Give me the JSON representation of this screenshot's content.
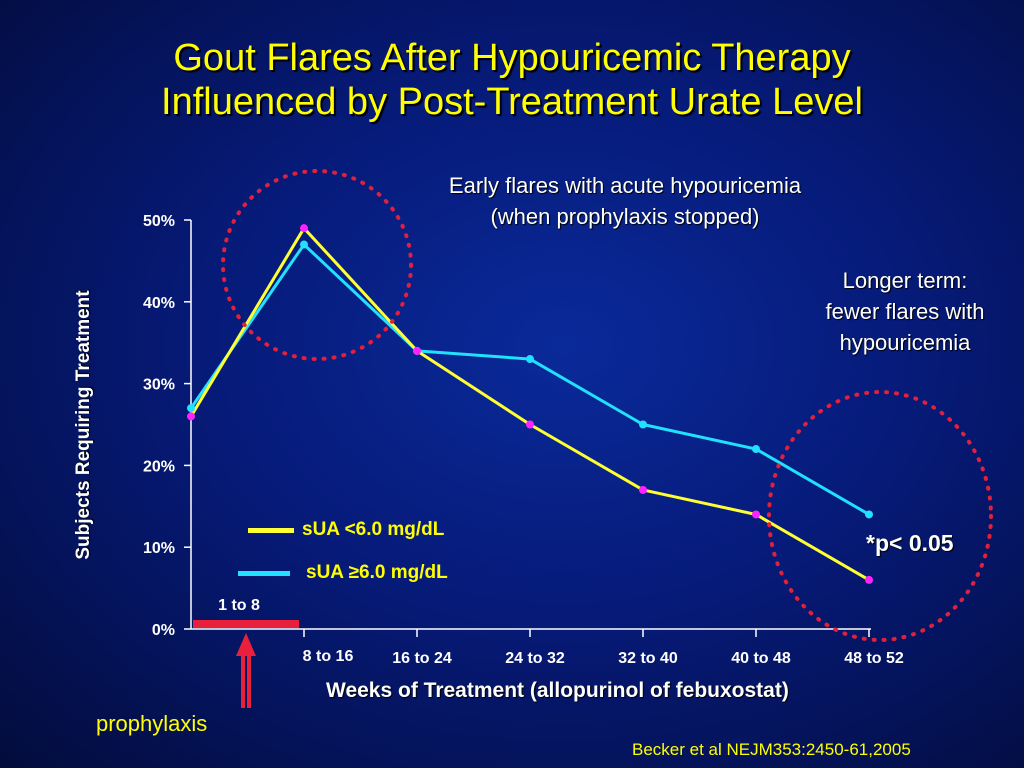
{
  "title": {
    "line1": "Gout Flares After Hypouricemic Therapy",
    "line2": "Influenced by Post-Treatment Urate Level"
  },
  "annotations": {
    "early_line1": "Early flares with acute hypouricemia",
    "early_line2": "(when prophylaxis stopped)",
    "later_line1": "Longer term:",
    "later_line2": "fewer flares with",
    "later_line3": "hypouricemia",
    "pvalue": "*p< 0.05",
    "prophylaxis": "prophylaxis",
    "prophylaxis_period": "1 to 8"
  },
  "citation": "Becker et al NEJM353:2450-61,2005",
  "colors": {
    "title": "#ffff00",
    "series_low": "#ffff33",
    "series_high": "#22e0ff",
    "marker_low": "#ff22ff",
    "highlight_circle": "#e0203c",
    "prophylaxis_bar": "#e8203c"
  },
  "chart_data": {
    "type": "line",
    "ylabel": "Subjects Requiring Treatment",
    "xlabel": "Weeks of Treatment (allopurinol of febuxostat)",
    "y_ticks": [
      "0%",
      "10%",
      "20%",
      "30%",
      "40%",
      "50%"
    ],
    "ylim": [
      0,
      50
    ],
    "categories": [
      "1 to 8",
      "8 to 16",
      "16 to 24",
      "24 to 32",
      "32 to 40",
      "40 to 48",
      "48 to 52"
    ],
    "x_tick_labels": [
      "8 to 16",
      "16 to 24",
      "24 to 32",
      "32 to 40",
      "40 to 48",
      "48 to 52"
    ],
    "series": [
      {
        "name": "sUA <6.0 mg/dL",
        "values": [
          26,
          49,
          34,
          25,
          17,
          14,
          6
        ]
      },
      {
        "name": "sUA ≥6.0 mg/dL",
        "values": [
          27,
          47,
          34,
          33,
          25,
          22,
          14
        ]
      }
    ],
    "grid": false,
    "legend_position": "lower-left"
  }
}
